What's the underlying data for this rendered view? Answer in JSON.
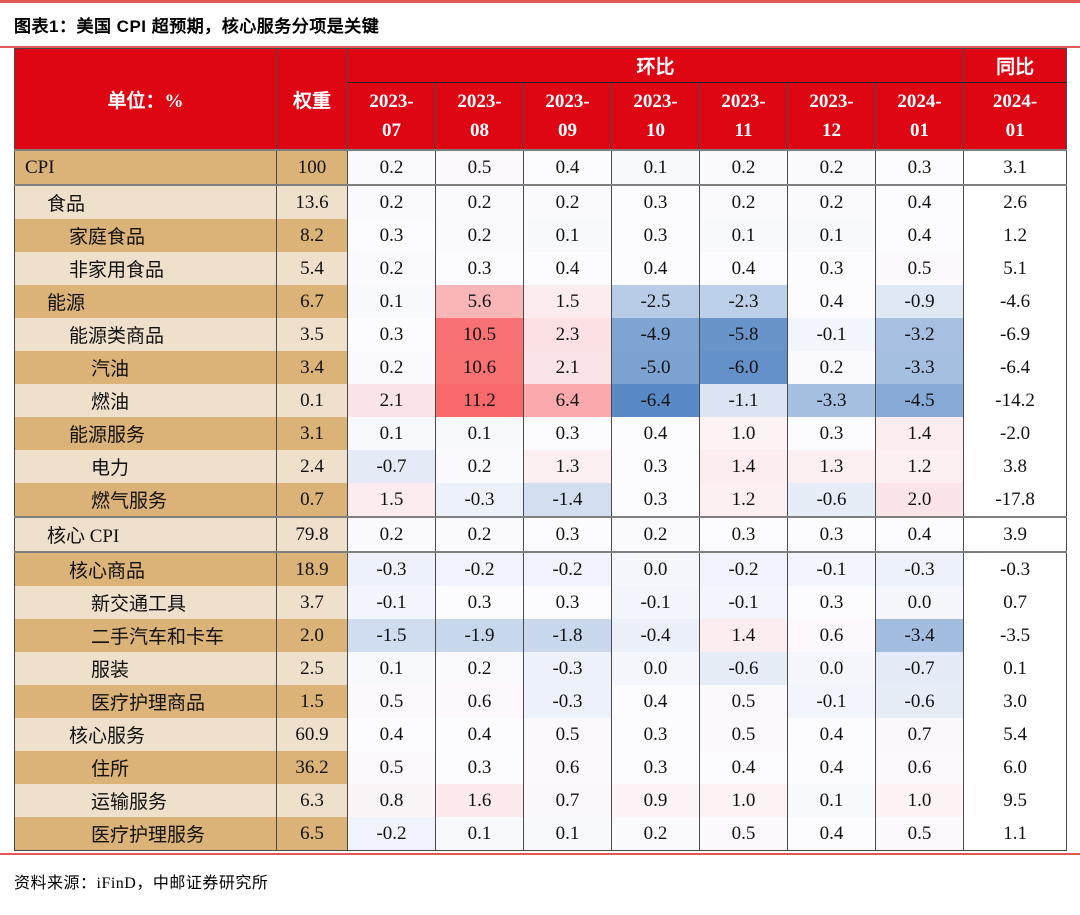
{
  "chart_data": {
    "type": "table",
    "title": "图表1：美国 CPI 超预期，核心服务分项是关键",
    "source": "资料来源：iFinD，中邮证券研究所",
    "header": {
      "unit_label": "单位：%",
      "weight_label": "权重",
      "mom_group_label": "环比",
      "yoy_group_label": "同比",
      "mom_months": [
        "2023-07",
        "2023-08",
        "2023-09",
        "2023-10",
        "2023-11",
        "2023-12",
        "2024-01"
      ],
      "yoy_month": "2024-01"
    },
    "rows": [
      {
        "label": "CPI",
        "indent": 0,
        "weight": "100",
        "mom": [
          "0.2",
          "0.5",
          "0.4",
          "0.1",
          "0.2",
          "0.2",
          "0.3"
        ],
        "yoy": "3.1",
        "total": true
      },
      {
        "label": "食品",
        "indent": 1,
        "weight": "13.6",
        "mom": [
          "0.2",
          "0.2",
          "0.2",
          "0.3",
          "0.2",
          "0.2",
          "0.4"
        ],
        "yoy": "2.6"
      },
      {
        "label": "家庭食品",
        "indent": 2,
        "weight": "8.2",
        "mom": [
          "0.3",
          "0.2",
          "0.1",
          "0.3",
          "0.1",
          "0.1",
          "0.4"
        ],
        "yoy": "1.2"
      },
      {
        "label": "非家用食品",
        "indent": 2,
        "weight": "5.4",
        "mom": [
          "0.2",
          "0.3",
          "0.4",
          "0.4",
          "0.4",
          "0.3",
          "0.5"
        ],
        "yoy": "5.1"
      },
      {
        "label": "能源",
        "indent": 1,
        "weight": "6.7",
        "mom": [
          "0.1",
          "5.6",
          "1.5",
          "-2.5",
          "-2.3",
          "0.4",
          "-0.9"
        ],
        "yoy": "-4.6"
      },
      {
        "label": "能源类商品",
        "indent": 2,
        "weight": "3.5",
        "mom": [
          "0.3",
          "10.5",
          "2.3",
          "-4.9",
          "-5.8",
          "-0.1",
          "-3.2"
        ],
        "yoy": "-6.9"
      },
      {
        "label": "汽油",
        "indent": 3,
        "weight": "3.4",
        "mom": [
          "0.2",
          "10.6",
          "2.1",
          "-5.0",
          "-6.0",
          "0.2",
          "-3.3"
        ],
        "yoy": "-6.4"
      },
      {
        "label": "燃油",
        "indent": 3,
        "weight": "0.1",
        "mom": [
          "2.1",
          "11.2",
          "6.4",
          "-6.4",
          "-1.1",
          "-3.3",
          "-4.5"
        ],
        "yoy": "-14.2"
      },
      {
        "label": "能源服务",
        "indent": 2,
        "weight": "3.1",
        "mom": [
          "0.1",
          "0.1",
          "0.3",
          "0.4",
          "1.0",
          "0.3",
          "1.4"
        ],
        "yoy": "-2.0"
      },
      {
        "label": "电力",
        "indent": 3,
        "weight": "2.4",
        "mom": [
          "-0.7",
          "0.2",
          "1.3",
          "0.3",
          "1.4",
          "1.3",
          "1.2"
        ],
        "yoy": "3.8"
      },
      {
        "label": "燃气服务",
        "indent": 3,
        "weight": "0.7",
        "mom": [
          "1.5",
          "-0.3",
          "-1.4",
          "0.3",
          "1.2",
          "-0.6",
          "2.0"
        ],
        "yoy": "-17.8"
      },
      {
        "label": "核心 CPI",
        "indent": 1,
        "weight": "79.8",
        "mom": [
          "0.2",
          "0.2",
          "0.3",
          "0.2",
          "0.3",
          "0.3",
          "0.4"
        ],
        "yoy": "3.9",
        "total": true
      },
      {
        "label": "核心商品",
        "indent": 2,
        "weight": "18.9",
        "mom": [
          "-0.3",
          "-0.2",
          "-0.2",
          "0.0",
          "-0.2",
          "-0.1",
          "-0.3"
        ],
        "yoy": "-0.3"
      },
      {
        "label": "新交通工具",
        "indent": 3,
        "weight": "3.7",
        "mom": [
          "-0.1",
          "0.3",
          "0.3",
          "-0.1",
          "-0.1",
          "0.3",
          "0.0"
        ],
        "yoy": "0.7"
      },
      {
        "label": "二手汽车和卡车",
        "indent": 3,
        "weight": "2.0",
        "mom": [
          "-1.5",
          "-1.9",
          "-1.8",
          "-0.4",
          "1.4",
          "0.6",
          "-3.4"
        ],
        "yoy": "-3.5"
      },
      {
        "label": "服装",
        "indent": 3,
        "weight": "2.5",
        "mom": [
          "0.1",
          "0.2",
          "-0.3",
          "0.0",
          "-0.6",
          "0.0",
          "-0.7"
        ],
        "yoy": "0.1"
      },
      {
        "label": "医疗护理商品",
        "indent": 3,
        "weight": "1.5",
        "mom": [
          "0.5",
          "0.6",
          "-0.3",
          "0.4",
          "0.5",
          "-0.1",
          "-0.6"
        ],
        "yoy": "3.0"
      },
      {
        "label": "核心服务",
        "indent": 2,
        "weight": "60.9",
        "mom": [
          "0.4",
          "0.4",
          "0.5",
          "0.3",
          "0.5",
          "0.4",
          "0.7"
        ],
        "yoy": "5.4"
      },
      {
        "label": "住所",
        "indent": 3,
        "weight": "36.2",
        "mom": [
          "0.5",
          "0.3",
          "0.6",
          "0.3",
          "0.4",
          "0.4",
          "0.6"
        ],
        "yoy": "6.0"
      },
      {
        "label": "运输服务",
        "indent": 3,
        "weight": "6.3",
        "mom": [
          "0.8",
          "1.6",
          "0.7",
          "0.9",
          "1.0",
          "0.1",
          "1.0"
        ],
        "yoy": "9.5"
      },
      {
        "label": "医疗护理服务",
        "indent": 3,
        "weight": "6.5",
        "mom": [
          "-0.2",
          "0.1",
          "0.1",
          "0.2",
          "0.5",
          "0.4",
          "0.5"
        ],
        "yoy": "1.1"
      }
    ],
    "heatmap_scale": {
      "applies_to": "mom",
      "min": -6.4,
      "mid": 0.3,
      "max": 11.2,
      "min_color": "#5A8AC6",
      "mid_color": "#FCFCFF",
      "max_color": "#F8696B"
    }
  },
  "colors": {
    "header_red": "#DE0613",
    "rule_red": "#E25858",
    "row_tan_dark": "#DBB277",
    "row_tan_light": "#EFE0CC",
    "grid_border": "#4A4A4A",
    "section_border": "#7F7F7F"
  }
}
